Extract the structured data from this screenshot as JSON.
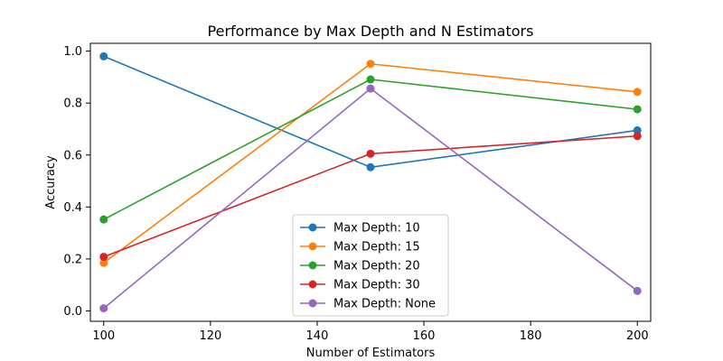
{
  "chart_data": {
    "type": "line",
    "title": "Performance by Max Depth and N Estimators",
    "xlabel": "Number of Estimators",
    "ylabel": "Accuracy",
    "x": [
      100,
      150,
      200
    ],
    "xlim": [
      97.5,
      202.5
    ],
    "ylim": [
      -0.04,
      1.03
    ],
    "xticks": [
      100,
      120,
      140,
      160,
      180,
      200
    ],
    "yticks": [
      0.0,
      0.2,
      0.4,
      0.6,
      0.8,
      1.0
    ],
    "xtick_labels": [
      "100",
      "120",
      "140",
      "160",
      "180",
      "200"
    ],
    "ytick_labels": [
      "0.0",
      "0.2",
      "0.4",
      "0.6",
      "0.8",
      "1.0"
    ],
    "grid": false,
    "legend_position": "bottom-center",
    "series": [
      {
        "name": "Max Depth: 10",
        "color": "#1f77b4",
        "values": [
          0.98,
          0.553,
          0.695
        ]
      },
      {
        "name": "Max Depth: 15",
        "color": "#ff7f0e",
        "values": [
          0.185,
          0.951,
          0.843
        ]
      },
      {
        "name": "Max Depth: 20",
        "color": "#2ca02c",
        "values": [
          0.352,
          0.891,
          0.776
        ]
      },
      {
        "name": "Max Depth: 30",
        "color": "#d62728",
        "values": [
          0.208,
          0.605,
          0.673
        ]
      },
      {
        "name": "Max Depth: None",
        "color": "#9467bd",
        "values": [
          0.01,
          0.856,
          0.077
        ]
      }
    ]
  }
}
